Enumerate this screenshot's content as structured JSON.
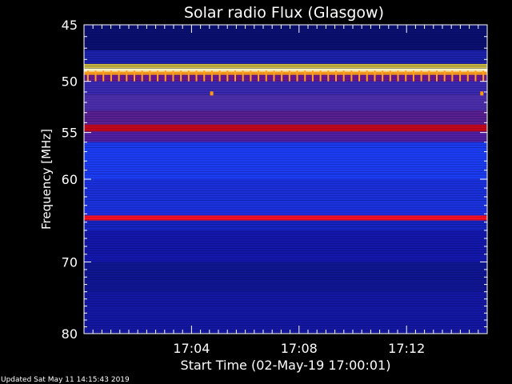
{
  "chart_data": {
    "type": "heatmap",
    "title": "Solar radio Flux (Glasgow)",
    "xlabel": "Start Time (02-May-19 17:00:01)",
    "ylabel": "Frequency [MHz]",
    "x_unit": "minutes after 17:00:01",
    "xlim": [
      0,
      15
    ],
    "ylim": [
      80,
      45
    ],
    "y_scale": "log",
    "x_ticks": [
      {
        "value": 4,
        "label": "17:04"
      },
      {
        "value": 8,
        "label": "17:08"
      },
      {
        "value": 12,
        "label": "17:12"
      }
    ],
    "y_ticks": [
      {
        "value": 45,
        "label": "45"
      },
      {
        "value": 50,
        "label": "50"
      },
      {
        "value": 55,
        "label": "55"
      },
      {
        "value": 60,
        "label": "60"
      },
      {
        "value": 70,
        "label": "70"
      },
      {
        "value": 80,
        "label": "80"
      }
    ],
    "bands": [
      {
        "from": 45.0,
        "to": 47.2,
        "color": "#0b0f6e"
      },
      {
        "from": 47.2,
        "to": 48.4,
        "color": "#1b22a8"
      },
      {
        "from": 48.4,
        "to": 48.8,
        "color": "#c8b840"
      },
      {
        "from": 48.8,
        "to": 49.1,
        "color": "#fff6c0"
      },
      {
        "from": 49.1,
        "to": 49.4,
        "color": "#ff9c1a"
      },
      {
        "from": 49.4,
        "to": 50.0,
        "color": "#6a1890"
      },
      {
        "from": 50.0,
        "to": 51.2,
        "color": "#3a2ab0"
      },
      {
        "from": 51.2,
        "to": 52.8,
        "color": "#4a2ea8"
      },
      {
        "from": 52.8,
        "to": 54.2,
        "color": "#5a2090"
      },
      {
        "from": 54.2,
        "to": 54.9,
        "color": "#c00818"
      },
      {
        "from": 54.9,
        "to": 56.0,
        "color": "#5020a0"
      },
      {
        "from": 56.0,
        "to": 60.0,
        "color": "#1c3cf0"
      },
      {
        "from": 60.0,
        "to": 63.5,
        "color": "#1a30d8"
      },
      {
        "from": 63.5,
        "to": 64.2,
        "color": "#1c2ee0"
      },
      {
        "from": 64.2,
        "to": 64.8,
        "color": "#ff1020"
      },
      {
        "from": 64.8,
        "to": 66.0,
        "color": "#1624c0"
      },
      {
        "from": 66.0,
        "to": 70.0,
        "color": "#1418a8"
      },
      {
        "from": 70.0,
        "to": 74.0,
        "color": "#101690"
      },
      {
        "from": 74.0,
        "to": 80.0,
        "color": "#1418a0"
      }
    ],
    "spikes": {
      "freq_from": 49.0,
      "freq_to": 50.0,
      "count": 52,
      "color": "#ffa020"
    },
    "hotspots": [
      {
        "x": 4.75,
        "freq": 51.1,
        "color": "#ff9a10"
      },
      {
        "x": 14.8,
        "freq": 51.1,
        "color": "#ff9a10"
      }
    ]
  },
  "footer": {
    "updated": "Updated Sat May 11 14:15:43 2019"
  }
}
